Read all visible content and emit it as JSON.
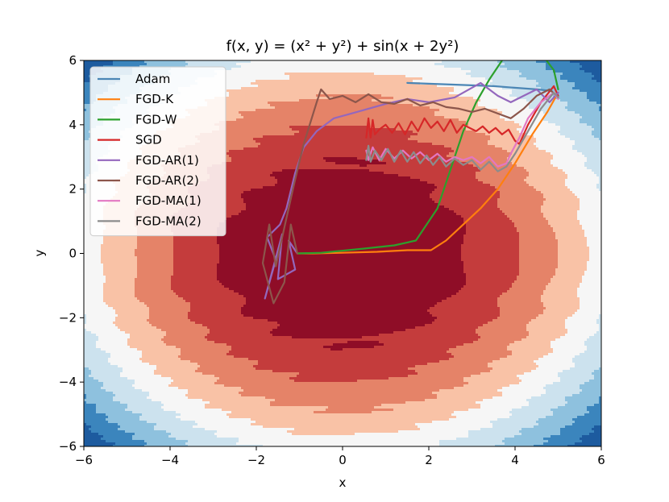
{
  "chart_data": {
    "type": "line",
    "title": "f(x, y) = (x² + y²) + sin(x + 2y²)",
    "xlabel": "x",
    "ylabel": "y",
    "xlim": [
      -6,
      6
    ],
    "ylim": [
      -6,
      6
    ],
    "xticks": [
      -6,
      -4,
      -2,
      0,
      2,
      4,
      6
    ],
    "yticks": [
      -6,
      -4,
      -2,
      0,
      2,
      4,
      6
    ],
    "xtick_labels": [
      "−6",
      "−4",
      "−2",
      "0",
      "2",
      "4",
      "6"
    ],
    "ytick_labels": [
      "−6",
      "−4",
      "−2",
      "0",
      "2",
      "4",
      "6"
    ],
    "legend_position": "top-left",
    "background": "filled contour (RdBu colormap) of f(x, y)",
    "series": [
      {
        "name": "Adam",
        "color": "#4b86b5",
        "x": [
          1.5,
          2.5,
          3.5,
          4.5,
          4.85
        ],
        "y": [
          5.3,
          5.25,
          5.2,
          5.1,
          5.05
        ]
      },
      {
        "name": "FGD-K",
        "color": "#ff7f0e",
        "x": [
          -1.05,
          -0.7,
          0.0,
          0.8,
          1.5,
          2.05,
          2.4,
          2.8,
          3.2,
          3.6,
          4.0,
          4.4,
          4.75,
          5.0
        ],
        "y": [
          0.0,
          0.0,
          0.02,
          0.05,
          0.1,
          0.1,
          0.4,
          0.9,
          1.4,
          2.0,
          2.8,
          3.7,
          4.4,
          5.0
        ]
      },
      {
        "name": "FGD-W",
        "color": "#2ca02c",
        "x": [
          -1.05,
          -0.5,
          0.5,
          1.2,
          1.7,
          2.2,
          2.5,
          2.8,
          3.1,
          3.4,
          3.7,
          4.1,
          4.5,
          4.9,
          5.0
        ],
        "y": [
          0.0,
          0.02,
          0.15,
          0.25,
          0.4,
          1.4,
          2.6,
          3.8,
          4.7,
          5.4,
          6.0,
          7.0,
          6.4,
          5.7,
          5.1
        ]
      },
      {
        "name": "SGD",
        "color": "#d62728",
        "x": [
          0.55,
          0.6,
          0.65,
          0.7,
          0.75,
          0.85,
          1.0,
          1.15,
          1.3,
          1.45,
          1.6,
          1.75,
          1.9,
          2.05,
          2.2,
          2.35,
          2.5,
          2.65,
          2.8,
          2.95,
          3.1,
          3.25,
          3.4,
          3.55,
          3.7,
          3.85,
          4.0,
          4.1,
          4.3,
          4.6,
          4.9,
          5.0
        ],
        "y": [
          3.6,
          4.2,
          3.6,
          4.15,
          3.7,
          3.85,
          4.0,
          3.75,
          4.05,
          3.7,
          4.1,
          3.8,
          4.2,
          3.9,
          4.1,
          3.8,
          4.15,
          3.75,
          4.0,
          3.9,
          3.8,
          3.95,
          3.75,
          3.9,
          3.7,
          3.85,
          3.5,
          3.4,
          4.0,
          4.7,
          5.2,
          4.9
        ]
      },
      {
        "name": "FGD-AR(1)",
        "color": "#9467bd",
        "x": [
          -1.05,
          -1.25,
          -1.1,
          -1.5,
          -1.4,
          -1.8,
          -1.55,
          -1.75,
          -1.45,
          -1.3,
          -1.1,
          -0.9,
          -0.6,
          -0.2,
          0.2,
          0.6,
          1.0,
          1.5,
          2.0,
          2.6,
          3.2,
          3.6,
          3.9,
          4.2,
          4.5,
          4.8,
          5.0
        ],
        "y": [
          0.0,
          0.4,
          -0.5,
          -0.8,
          0.6,
          -1.4,
          -0.2,
          0.5,
          0.9,
          1.4,
          2.5,
          3.3,
          3.8,
          4.2,
          4.35,
          4.5,
          4.65,
          4.8,
          4.7,
          4.85,
          5.3,
          4.9,
          4.7,
          4.9,
          5.1,
          4.7,
          5.0
        ]
      },
      {
        "name": "FGD-AR(2)",
        "color": "#8c564b",
        "x": [
          -1.05,
          -1.2,
          -1.35,
          -1.6,
          -1.85,
          -1.7,
          -1.55,
          -1.3,
          -1.1,
          -0.9,
          -0.6,
          -0.5,
          -0.3,
          0.0,
          0.3,
          0.6,
          0.9,
          1.2,
          1.5,
          1.8,
          2.1,
          2.4,
          2.7,
          3.0,
          3.3,
          3.6,
          3.9,
          4.2,
          4.5,
          4.8,
          5.0
        ],
        "y": [
          0.0,
          0.9,
          -0.9,
          -1.55,
          -0.3,
          0.9,
          -0.4,
          1.1,
          2.3,
          3.4,
          4.7,
          5.1,
          4.8,
          4.9,
          4.7,
          4.95,
          4.7,
          4.65,
          4.8,
          4.6,
          4.7,
          4.55,
          4.5,
          4.4,
          4.5,
          4.35,
          4.2,
          4.5,
          4.9,
          5.1,
          4.85
        ]
      },
      {
        "name": "FGD-MA(1)",
        "color": "#e377c2",
        "x": [
          0.55,
          0.6,
          0.7,
          0.85,
          1.0,
          1.2,
          1.4,
          1.6,
          1.8,
          2.0,
          2.2,
          2.4,
          2.6,
          2.8,
          3.0,
          3.2,
          3.4,
          3.6,
          3.8,
          3.9,
          4.1,
          4.3,
          4.6,
          4.9,
          5.0
        ],
        "y": [
          3.2,
          2.9,
          3.3,
          2.9,
          3.25,
          2.95,
          3.2,
          2.95,
          3.15,
          2.9,
          3.1,
          2.85,
          3.0,
          2.9,
          3.0,
          2.8,
          3.0,
          2.7,
          2.8,
          3.1,
          3.6,
          4.2,
          4.7,
          5.0,
          4.8
        ]
      },
      {
        "name": "FGD-MA(2)",
        "color": "#8c8c8c",
        "x": [
          0.55,
          0.6,
          0.65,
          0.75,
          0.9,
          1.05,
          1.2,
          1.35,
          1.5,
          1.65,
          1.8,
          1.95,
          2.1,
          2.25,
          2.4,
          2.6,
          2.8,
          3.0,
          3.2,
          3.4,
          3.6,
          3.8,
          4.0,
          4.3,
          4.6,
          4.9,
          5.0
        ],
        "y": [
          2.9,
          3.35,
          2.85,
          3.2,
          2.9,
          3.25,
          2.85,
          3.2,
          2.85,
          3.15,
          2.8,
          3.05,
          2.75,
          3.0,
          2.7,
          2.95,
          2.75,
          2.9,
          2.6,
          2.85,
          2.55,
          2.7,
          3.1,
          3.8,
          4.5,
          5.0,
          4.85
        ]
      }
    ]
  }
}
